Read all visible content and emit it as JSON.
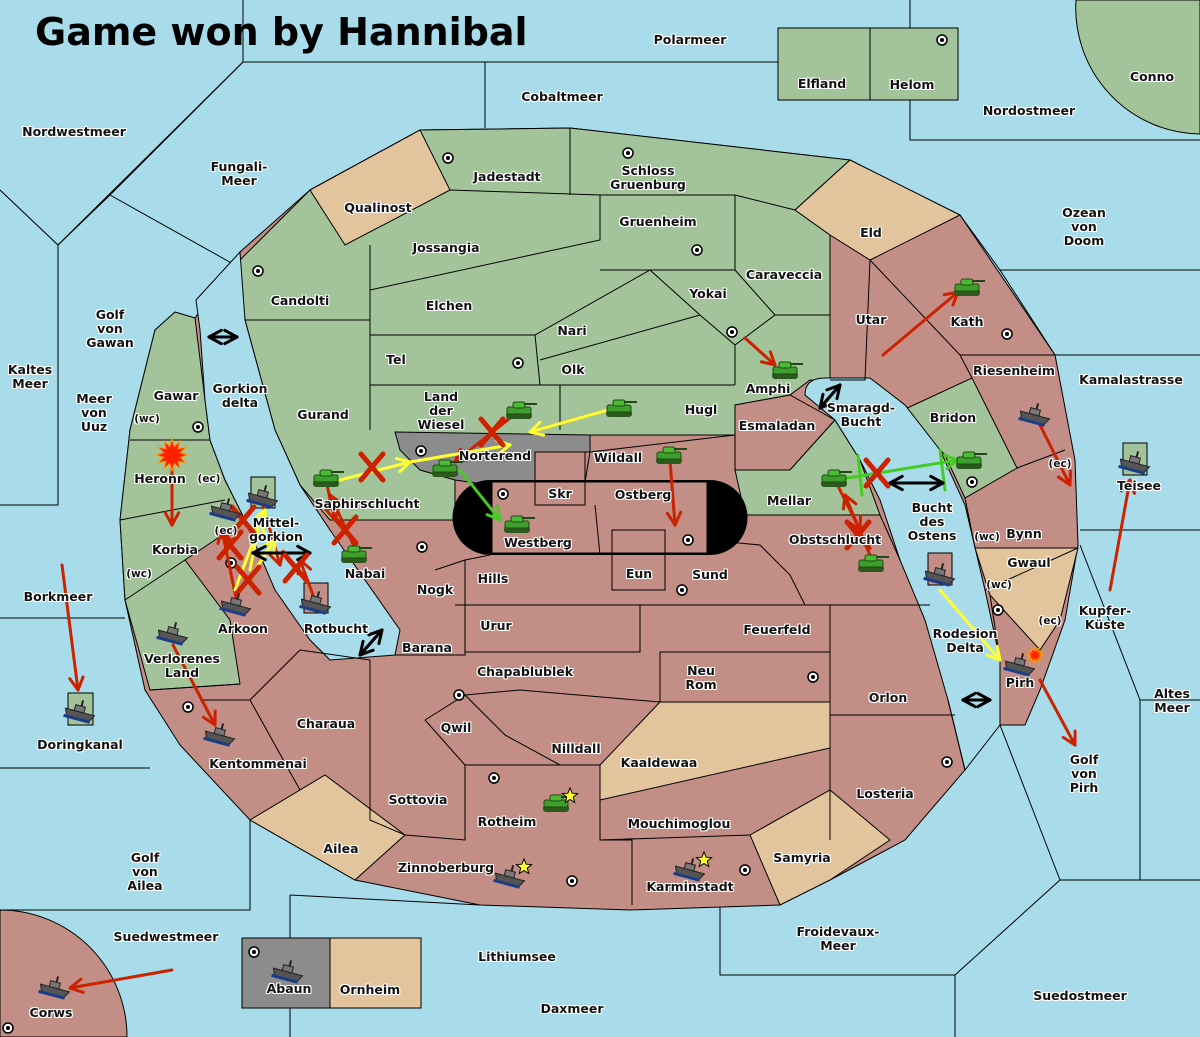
{
  "title": "Game won by Hannibal",
  "colors": {
    "sea": "#a8dcea",
    "land_green": "#a3c49a",
    "land_red": "#c28e85",
    "land_tan": "#e2c59c",
    "land_gray": "#8c8c8c",
    "order_failed": "#cc2200",
    "order_support": "#ffff33",
    "order_success": "#44cc22"
  },
  "provinces": [
    "Polarmeer",
    "Cobaltmeer",
    "Elfland",
    "Helom",
    "Conno",
    "Nordostmeer",
    "Nordwestmeer",
    "Fungali-Meer",
    "Jadestadt",
    "Schloss Gruenburg",
    "Qualinost",
    "Gruenheim",
    "Eld",
    "Ozean von Doom",
    "Jossangia",
    "Caraveccia",
    "Yokai",
    "Candolti",
    "Elchen",
    "Utar",
    "Kath",
    "Golf von\nGawan",
    "Nari",
    "Tel",
    "Olk",
    "Kaltes\nMeer",
    "Riesenheim",
    "Kamalastrasse",
    "Amphi",
    "Gawar",
    "Gorkion\ndelta",
    "Meer\nvon Uuz",
    "Smaragd-\nBucht",
    "Land der Wiesel",
    "Hugl",
    "Gurand",
    "Bridon",
    "Esmaladan",
    "Norterend",
    "Wildall",
    "Heronn",
    "Skr",
    "Ostberg",
    "Teisee",
    "Mellar",
    "Saphirschlucht",
    "Bucht\ndes\nOstens",
    "Mittel-\ngorkion",
    "Westberg",
    "Bynn",
    "Obstschlucht",
    "Korbia",
    "Nabai",
    "Hills",
    "Eun",
    "Sund",
    "Gwaul",
    "Nogk",
    "Borkmeer",
    "Kupfer-\nKüste",
    "Urur",
    "Arkoon",
    "Rotbucht",
    "Feuerfeld",
    "Rodesion\nDelta",
    "Barana",
    "Verlorenes\nLand",
    "Chapablublek",
    "Neu Rom",
    "Pirh",
    "Orlon",
    "Altes\nMeer",
    "Charaua",
    "Qwil",
    "Doringkanal",
    "Nilldall",
    "Kaaldewaa",
    "Kentommenai",
    "Golf von Pirh",
    "Losteria",
    "Sottovia",
    "Rotheim",
    "Mouchimoglou",
    "Ailea",
    "Samyria",
    "Zinnoberburg",
    "Golf von Ailea",
    "Karminstadt",
    "Suedwestmeer",
    "Froidevaux-Meer",
    "Lithiumsee",
    "Abaun",
    "Ornheim",
    "Suedostmeer",
    "Daxmeer",
    "Corws"
  ],
  "coast_labels": [
    "(wc)",
    "(ec)",
    "(ec)",
    "(wc)",
    "(ec)",
    "(wc)",
    "(ec)",
    "(wc)",
    "(ec)"
  ],
  "units": {
    "army_icon": "tank-icon",
    "fleet_icon": "ship-icon",
    "dislodged_icon": "explosion-icon",
    "build_icon": "star-icon"
  }
}
